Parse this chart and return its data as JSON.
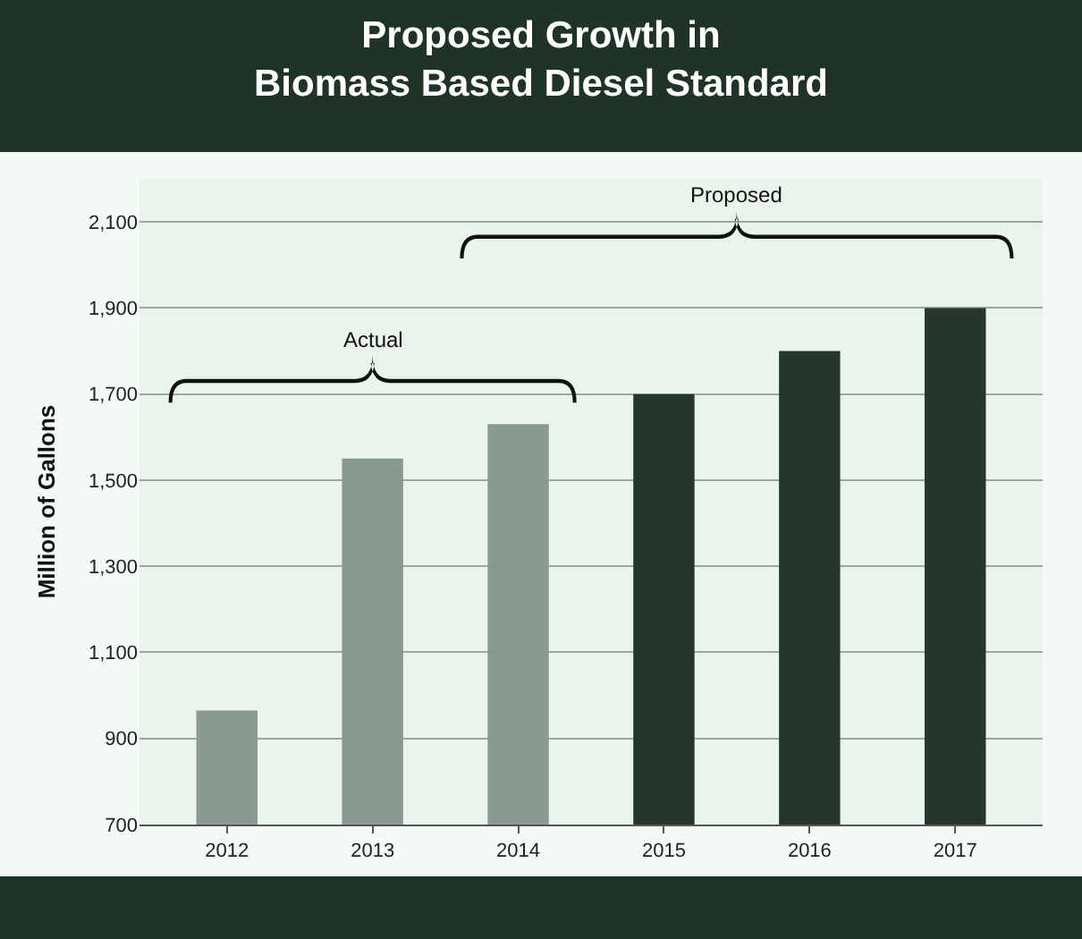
{
  "chart_data": {
    "type": "bar",
    "title": "Proposed Growth in\nBiomass Based Diesel Standard",
    "ylabel": "Million of Gallons",
    "categories": [
      "2012",
      "2013",
      "2014",
      "2015",
      "2016",
      "2017"
    ],
    "values": [
      965,
      1550,
      1630,
      1700,
      1800,
      1900
    ],
    "colors": [
      "#8b9a91",
      "#8b9a91",
      "#8b9a91",
      "#26362b",
      "#26362b",
      "#26362b"
    ],
    "ylim": [
      700,
      2200
    ],
    "yticks": [
      {
        "value": 700,
        "label": "700"
      },
      {
        "value": 900,
        "label": "900"
      },
      {
        "value": 1100,
        "label": "1,100"
      },
      {
        "value": 1300,
        "label": "1,300"
      },
      {
        "value": 1500,
        "label": "1,500"
      },
      {
        "value": 1700,
        "label": "1,700"
      },
      {
        "value": 1900,
        "label": "1,900"
      },
      {
        "value": 2100,
        "label": "2,100"
      }
    ],
    "grid": "y",
    "annotations": [
      "Actual",
      "Proposed"
    ]
  }
}
